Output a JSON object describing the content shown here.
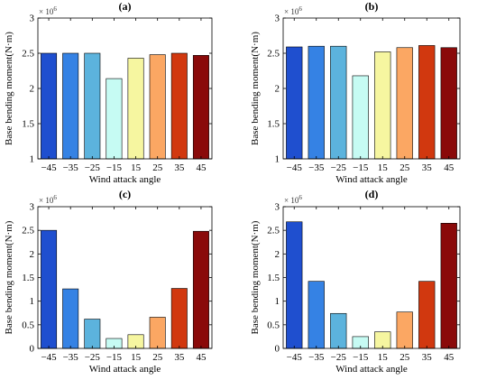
{
  "palette": [
    "#1f4fcf",
    "#3582e4",
    "#5cb3dd",
    "#c6fbf3",
    "#f6f6a0",
    "#fba763",
    "#d1380f",
    "#8a0a0a"
  ],
  "chart_data": [
    {
      "type": "bar",
      "title": "(a)",
      "xlabel": "Wind attack angle",
      "ylabel": "Base bending moment(N·m)",
      "multiplier_base": "× 10",
      "multiplier_exp": "6",
      "categories": [
        "−45",
        "−35",
        "−25",
        "−15",
        "15",
        "25",
        "35",
        "45"
      ],
      "values": [
        2.5,
        2.5,
        2.5,
        2.14,
        2.43,
        2.48,
        2.5,
        2.47
      ],
      "ylim": [
        1,
        3
      ],
      "yticks": [
        1,
        1.5,
        2,
        2.5,
        3
      ],
      "ytick_labels": [
        "1",
        "1.5",
        "2",
        "2.5",
        "3"
      ],
      "grid": false
    },
    {
      "type": "bar",
      "title": "(b)",
      "xlabel": "Wind attack angle",
      "ylabel": "Base bending moment(N·m)",
      "multiplier_base": "× 10",
      "multiplier_exp": "6",
      "categories": [
        "−45",
        "−35",
        "−25",
        "−15",
        "15",
        "25",
        "35",
        "45"
      ],
      "values": [
        2.59,
        2.6,
        2.6,
        2.18,
        2.52,
        2.58,
        2.61,
        2.58
      ],
      "ylim": [
        1,
        3
      ],
      "yticks": [
        1,
        1.5,
        2,
        2.5,
        3
      ],
      "ytick_labels": [
        "1",
        "1.5",
        "2",
        "2.5",
        "3"
      ],
      "grid": false
    },
    {
      "type": "bar",
      "title": "(c)",
      "xlabel": "Wind attack angle",
      "ylabel": "Base bending moment(N·m)",
      "multiplier_base": "× 10",
      "multiplier_exp": "6",
      "categories": [
        "−45",
        "−35",
        "−25",
        "−15",
        "15",
        "25",
        "35",
        "45"
      ],
      "values": [
        2.5,
        1.26,
        0.62,
        0.21,
        0.29,
        0.66,
        1.27,
        2.48
      ],
      "ylim": [
        0,
        3
      ],
      "yticks": [
        0,
        0.5,
        1,
        1.5,
        2,
        2.5,
        3
      ],
      "ytick_labels": [
        "0",
        "0.5",
        "1",
        "1.5",
        "2",
        "2.5",
        "3"
      ],
      "grid": false
    },
    {
      "type": "bar",
      "title": "(d)",
      "xlabel": "Wind attack angle",
      "ylabel": "Base bending moment(N·m)",
      "multiplier_base": "× 10",
      "multiplier_exp": "6",
      "categories": [
        "−45",
        "−35",
        "−25",
        "−15",
        "15",
        "25",
        "35",
        "45"
      ],
      "values": [
        2.68,
        1.42,
        0.74,
        0.25,
        0.35,
        0.77,
        1.42,
        2.65
      ],
      "ylim": [
        0,
        3
      ],
      "yticks": [
        0,
        0.5,
        1,
        1.5,
        2,
        2.5,
        3
      ],
      "ytick_labels": [
        "0",
        "0.5",
        "1",
        "1.5",
        "2",
        "2.5",
        "3"
      ],
      "grid": false
    }
  ]
}
